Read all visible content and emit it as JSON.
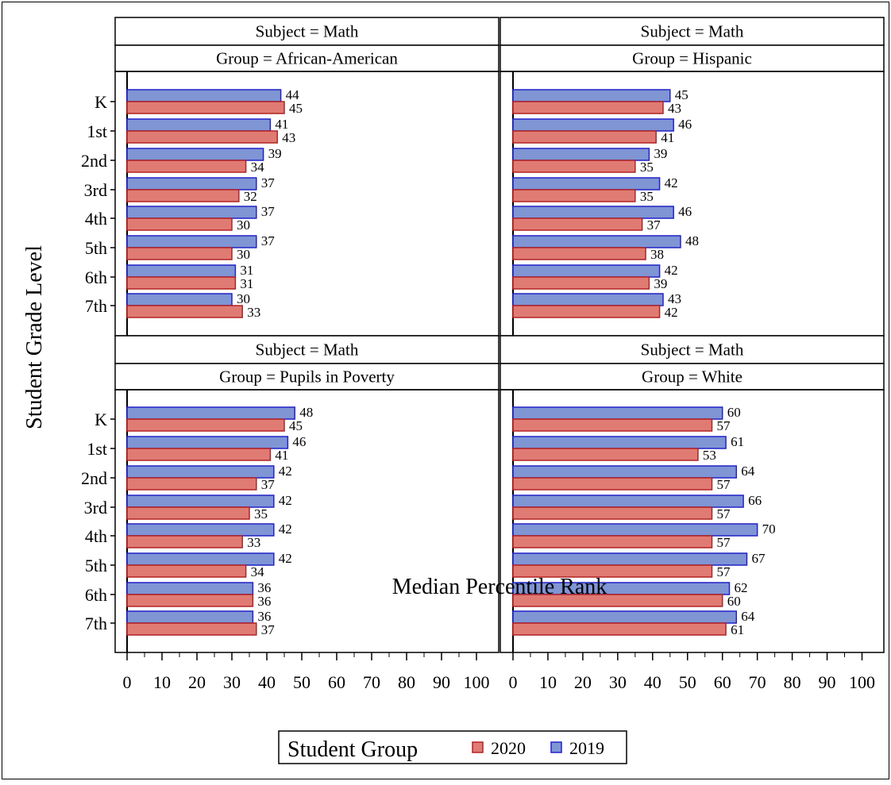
{
  "chart_data": {
    "type": "bar",
    "orientation": "horizontal",
    "ylabel": "Student Grade Level",
    "xlabel": "Median Percentile Rank",
    "xlim": [
      0,
      100
    ],
    "xticks": [
      0,
      10,
      20,
      30,
      40,
      50,
      60,
      70,
      80,
      90,
      100
    ],
    "categories": [
      "K",
      "1st",
      "2nd",
      "3rd",
      "4th",
      "5th",
      "6th",
      "7th"
    ],
    "legend": {
      "title": "Student Group",
      "placement": "bottom",
      "items": [
        {
          "label": "2020",
          "color": "#e07b74"
        },
        {
          "label": "2019",
          "color": "#7f95d4"
        }
      ]
    },
    "colors": {
      "2020_fill": "#e07b74",
      "2020_stroke": "#b22222",
      "2019_fill": "#7f95d4",
      "2019_stroke": "#2222c8"
    },
    "panels": [
      {
        "subject": "Subject = Math",
        "group": "Group = African-American",
        "series": [
          {
            "name": "2019",
            "values": [
              44,
              41,
              39,
              37,
              37,
              37,
              31,
              30
            ]
          },
          {
            "name": "2020",
            "values": [
              45,
              43,
              34,
              32,
              30,
              30,
              31,
              33
            ]
          }
        ]
      },
      {
        "subject": "Subject = Math",
        "group": "Group = Hispanic",
        "series": [
          {
            "name": "2019",
            "values": [
              45,
              46,
              39,
              42,
              46,
              48,
              42,
              43
            ]
          },
          {
            "name": "2020",
            "values": [
              43,
              41,
              35,
              35,
              37,
              38,
              39,
              42
            ]
          }
        ]
      },
      {
        "subject": "Subject = Math",
        "group": "Group = Pupils in Poverty",
        "series": [
          {
            "name": "2019",
            "values": [
              48,
              46,
              42,
              42,
              42,
              42,
              36,
              36
            ]
          },
          {
            "name": "2020",
            "values": [
              45,
              41,
              37,
              35,
              33,
              34,
              36,
              37
            ]
          }
        ]
      },
      {
        "subject": "Subject = Math",
        "group": "Group = White",
        "series": [
          {
            "name": "2019",
            "values": [
              60,
              61,
              64,
              66,
              70,
              67,
              62,
              64
            ]
          },
          {
            "name": "2020",
            "values": [
              57,
              53,
              57,
              57,
              57,
              57,
              60,
              61
            ]
          }
        ]
      }
    ]
  }
}
